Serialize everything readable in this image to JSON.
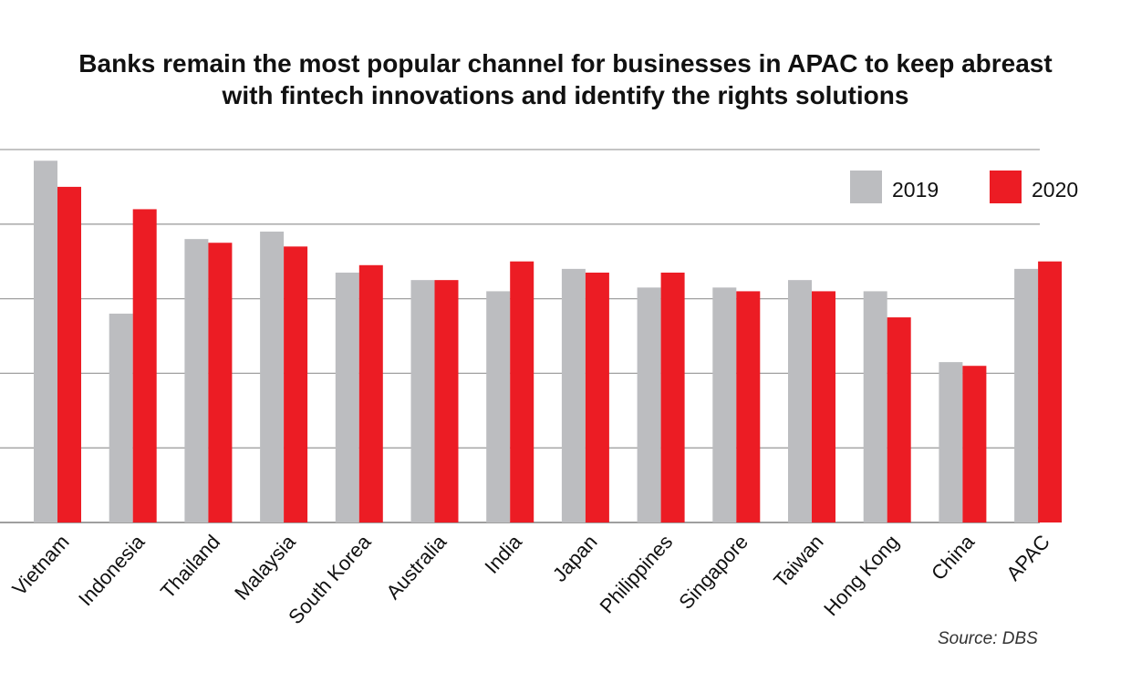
{
  "chart_data": {
    "type": "bar",
    "title": "Banks remain the most popular channel for businesses in APAC to keep abreast with fintech innovations and identify the rights solutions",
    "title_lines": [
      "Banks remain the most popular channel for businesses in APAC to keep abreast",
      "with fintech innovations and identify the rights solutions"
    ],
    "categories": [
      "Vietnam",
      "Indonesia",
      "Thailand",
      "Malaysia",
      "South Korea",
      "Australia",
      "India",
      "Japan",
      "Philippines",
      "Singapore",
      "Taiwan",
      "Hong Kong",
      "China",
      "APAC"
    ],
    "series": [
      {
        "name": "2019",
        "color": "#bcbdc0",
        "values": [
          97,
          56,
          76,
          78,
          67,
          65,
          62,
          68,
          63,
          63,
          65,
          62,
          43,
          68
        ]
      },
      {
        "name": "2020",
        "color": "#ec1c24",
        "values": [
          90,
          84,
          75,
          74,
          69,
          65,
          70,
          67,
          67,
          62,
          62,
          55,
          42,
          70
        ]
      }
    ],
    "ylim": [
      0,
      100
    ],
    "y_gridlines": [
      0,
      20,
      40,
      60,
      80,
      100
    ],
    "xlabel": "",
    "ylabel": "",
    "legend_position": "top-right",
    "source": "Source: DBS"
  },
  "colors": {
    "bar_2019": "#bcbdc0",
    "bar_2020": "#ec1c24",
    "gridline": "#999999"
  }
}
